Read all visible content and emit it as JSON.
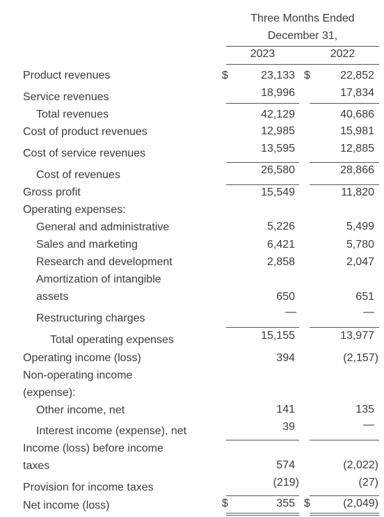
{
  "header": {
    "title_lines": [
      "Three Months Ended",
      "December 31,"
    ],
    "columns": [
      "2023",
      "2022"
    ]
  },
  "rows": [
    {
      "label": [
        "Product revenues"
      ],
      "currency": [
        "$",
        "$"
      ],
      "values": [
        "23,133",
        "22,852"
      ]
    },
    {
      "label": [
        "Service revenues"
      ],
      "values": [
        "18,996",
        "17,834"
      ]
    },
    {
      "label": [
        "Total revenues"
      ],
      "values": [
        "42,129",
        "40,686"
      ]
    },
    {
      "label": [
        "Cost of product revenues"
      ],
      "values": [
        "12,985",
        "15,981"
      ]
    },
    {
      "label": [
        "Cost of service revenues"
      ],
      "values": [
        "13,595",
        "12,885"
      ]
    },
    {
      "label": [
        "Cost of revenues"
      ],
      "values": [
        "26,580",
        "28,866"
      ]
    },
    {
      "label": [
        "Gross profit"
      ],
      "values": [
        "15,549",
        "11,820"
      ]
    },
    {
      "label": [
        "Operating expenses:"
      ]
    },
    {
      "label": [
        "General and administrative"
      ],
      "values": [
        "5,226",
        "5,499"
      ]
    },
    {
      "label": [
        "Sales and marketing"
      ],
      "values": [
        "6,421",
        "5,780"
      ]
    },
    {
      "label": [
        "Research and development"
      ],
      "values": [
        "2,858",
        "2,047"
      ]
    },
    {
      "label": [
        "Amortization of intangible",
        "assets"
      ],
      "values": [
        "650",
        "651"
      ]
    },
    {
      "label": [
        "Restructuring charges"
      ],
      "values": [
        "—",
        "—"
      ]
    },
    {
      "label": [
        "Total operating expenses"
      ],
      "values": [
        "15,155",
        "13,977"
      ]
    },
    {
      "label": [
        "Operating income (loss)"
      ],
      "values": [
        "394",
        "(2,157)"
      ]
    },
    {
      "label": [
        "Non-operating income",
        "(expense):"
      ]
    },
    {
      "label": [
        "Other income, net"
      ],
      "values": [
        "141",
        "135"
      ]
    },
    {
      "label": [
        "Interest income (expense), net"
      ],
      "values": [
        "39",
        "—"
      ]
    },
    {
      "label": [
        "Income (loss) before income",
        "taxes"
      ],
      "values": [
        "574",
        "(2,022)"
      ]
    },
    {
      "label": [
        "Provision for income taxes"
      ],
      "values": [
        "(219)",
        "(27)"
      ]
    },
    {
      "label": [
        "Net income (loss)"
      ],
      "currency": [
        "$",
        "$"
      ],
      "values": [
        "355",
        "(2,049)"
      ]
    }
  ]
}
